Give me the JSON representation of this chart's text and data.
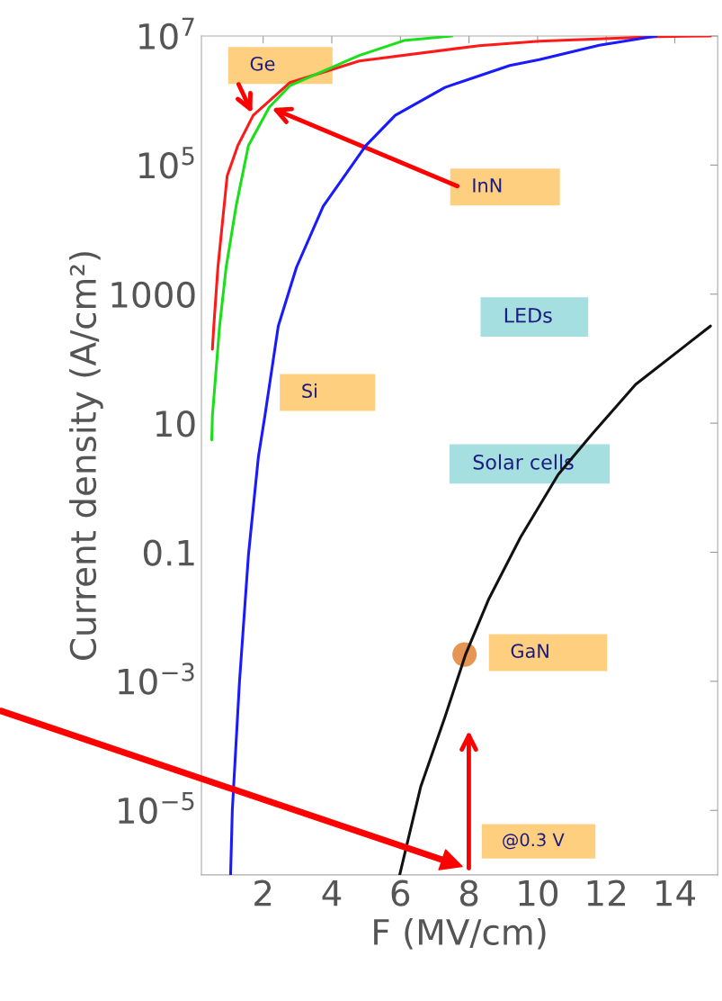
{
  "chart_data": {
    "type": "line",
    "xlabel": "F (MV/cm)",
    "ylabel": "Current density (A/cm²)",
    "log": "y",
    "xlim": [
      0.2,
      15.25
    ],
    "xticks": [
      2,
      4,
      6,
      8,
      10,
      12,
      14
    ],
    "ylim": [
      1e-06,
      10000000.0
    ],
    "yticks": [
      {
        "value": 1e-05,
        "label": "10$^{−5}$"
      },
      {
        "value": 0.001,
        "label": "10$^{−3}$"
      },
      0.1,
      10,
      1000,
      {
        "value": 100000.0,
        "label": "10$^{5}$"
      },
      {
        "value": 10000000.0,
        "label": "10$^{7}$"
      }
    ],
    "grid": false,
    "legend": false,
    "series": [
      {
        "name": "Ge",
        "color": "#ff1a1a",
        "x": [
          0.52,
          0.56,
          0.68,
          0.95,
          1.26,
          1.71,
          2.78,
          4.8,
          8.3,
          10.05,
          13.5,
          15.04
        ],
        "values": [
          140,
          320,
          2600,
          68000,
          200000,
          590000,
          1900000,
          4100000,
          7100000,
          8300000,
          9800000,
          10000000
        ]
      },
      {
        "name": "InN",
        "color": "#1adf1a",
        "x": [
          0.5,
          0.52,
          0.73,
          0.92,
          1.21,
          1.57,
          2.18,
          2.78,
          4.8,
          6.1,
          7.5
        ],
        "values": [
          5.5,
          13,
          320,
          2600,
          23000,
          200000,
          790000,
          1700000,
          5000000,
          8500000,
          10000000
        ]
      },
      {
        "name": "Si",
        "color": "#1a1aff",
        "x": [
          1.05,
          1.1,
          1.31,
          1.57,
          1.86,
          2.05,
          2.44,
          2.97,
          3.75,
          4.99,
          5.85,
          7.3,
          9.19,
          10.05,
          11.8,
          13.46
        ],
        "values": [
          1e-06,
          1e-05,
          0.001,
          0.09,
          3,
          13,
          320,
          2600,
          23000,
          200000,
          590000,
          1600000,
          3500000,
          4300000,
          7200000,
          10000000
        ]
      },
      {
        "name": "GaN",
        "color": "#111111",
        "x": [
          5.98,
          6.59,
          7.3,
          7.9,
          8.58,
          9.5,
          10.6,
          11.6,
          12.86,
          15.04
        ],
        "values": [
          1e-06,
          2.3e-05,
          0.00028,
          0.0026,
          0.019,
          0.17,
          1.6,
          6.9,
          40,
          320
        ]
      },
      {
        "type": "scatter",
        "color": "#e07a2a",
        "x": [
          7.87
        ],
        "values": [
          0.0026
        ]
      }
    ],
    "annotations": [
      "LEDs",
      "Solar cells",
      "@0.3 V"
    ]
  }
}
